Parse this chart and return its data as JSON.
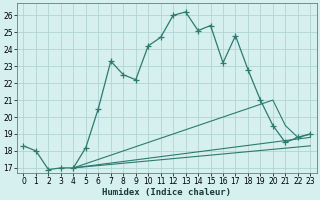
{
  "xlabel": "Humidex (Indice chaleur)",
  "bg_color": "#d6f0f0",
  "grid_color": "#b0d4d4",
  "line_color": "#2d7a6e",
  "xlim": [
    -0.5,
    23.5
  ],
  "ylim": [
    16.7,
    26.7
  ],
  "xticks": [
    0,
    1,
    2,
    3,
    4,
    5,
    6,
    7,
    8,
    9,
    10,
    11,
    12,
    13,
    14,
    15,
    16,
    17,
    18,
    19,
    20,
    21,
    22,
    23
  ],
  "yticks": [
    17,
    18,
    19,
    20,
    21,
    22,
    23,
    24,
    25,
    26
  ],
  "line1_x": [
    0,
    1,
    2,
    3,
    4,
    5,
    6,
    7,
    8,
    9,
    10,
    11,
    12,
    13,
    14,
    15,
    16,
    17,
    18,
    19,
    20,
    21,
    22,
    23
  ],
  "line1_y": [
    18.3,
    18.0,
    16.9,
    17.0,
    17.0,
    18.2,
    20.5,
    23.3,
    22.5,
    22.2,
    24.2,
    24.7,
    26.0,
    26.2,
    25.1,
    25.4,
    23.2,
    24.8,
    22.8,
    21.0,
    19.5,
    18.5,
    18.8,
    19.0
  ],
  "line2_x": [
    4,
    20,
    21,
    22,
    23
  ],
  "line2_y": [
    17.0,
    21.0,
    19.5,
    18.8,
    19.0
  ],
  "line3_x": [
    4,
    23
  ],
  "line3_y": [
    17.0,
    18.8
  ],
  "line4_x": [
    4,
    23
  ],
  "line4_y": [
    17.0,
    18.3
  ]
}
